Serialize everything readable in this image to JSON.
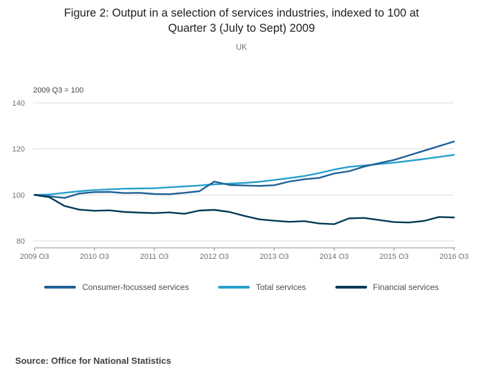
{
  "source": "Source: Office for National Statistics",
  "chart_data": {
    "type": "line",
    "title": "Figure 2: Output in a selection of services industries, indexed to 100 at Quarter 3 (July to Sept) 2009",
    "subtitle": "UK",
    "annotation": "2009 Q3 = 100",
    "x": [
      "2009 Q3",
      "2009 Q4",
      "2010 Q1",
      "2010 Q2",
      "2010 Q3",
      "2010 Q4",
      "2011 Q1",
      "2011 Q2",
      "2011 Q3",
      "2011 Q4",
      "2012 Q1",
      "2012 Q2",
      "2012 Q3",
      "2012 Q4",
      "2013 Q1",
      "2013 Q2",
      "2013 Q3",
      "2013 Q4",
      "2014 Q1",
      "2014 Q2",
      "2014 Q3",
      "2014 Q4",
      "2015 Q1",
      "2015 Q2",
      "2015 Q3",
      "2015 Q4",
      "2016 Q1",
      "2016 Q2",
      "2016 Q3"
    ],
    "x_tick_labels": [
      "2009 Q3",
      "2010 Q3",
      "2011 Q3",
      "2012 Q3",
      "2013 Q3",
      "2014 Q3",
      "2015 Q3",
      "2016 Q3"
    ],
    "ylim": [
      80,
      140
    ],
    "yticks": [
      80,
      100,
      120,
      140
    ],
    "grid": "horizontal",
    "legend_position": "bottom",
    "series": [
      {
        "name": "Consumer-focussed services",
        "color": "#206095",
        "values": [
          100,
          99.4,
          98.7,
          100.6,
          101.2,
          101.3,
          100.8,
          100.9,
          100.4,
          100.3,
          100.9,
          101.6,
          105.8,
          104.3,
          104.1,
          103.9,
          104.2,
          105.8,
          106.8,
          107.4,
          109.3,
          110.3,
          112.3,
          113.8,
          115.2,
          117.2,
          119.2,
          121.2,
          123.2
        ]
      },
      {
        "name": "Total services",
        "color": "#27a0cc",
        "values": [
          100,
          100.2,
          100.9,
          101.6,
          102.1,
          102.4,
          102.7,
          102.8,
          102.9,
          103.3,
          103.7,
          104.1,
          104.6,
          104.9,
          105.2,
          105.7,
          106.5,
          107.3,
          108.2,
          109.5,
          111.0,
          112.2,
          112.8,
          113.4,
          114.0,
          114.8,
          115.6,
          116.5,
          117.4
        ]
      },
      {
        "name": "Financial services",
        "color": "#003c57",
        "values": [
          100,
          99.0,
          95.2,
          93.6,
          93.1,
          93.3,
          92.6,
          92.3,
          92.1,
          92.4,
          91.8,
          93.2,
          93.5,
          92.6,
          90.9,
          89.4,
          88.8,
          88.3,
          88.6,
          87.6,
          87.3,
          89.8,
          90.0,
          89.1,
          88.2,
          88.0,
          88.7,
          90.4,
          90.2
        ]
      }
    ]
  }
}
